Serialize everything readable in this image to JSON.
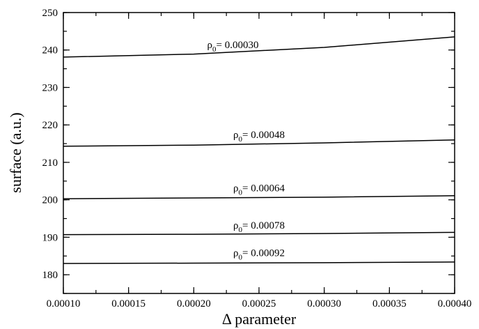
{
  "chart_data": {
    "type": "line",
    "xlabel": "Δ parameter",
    "ylabel": "surface (a.u.)",
    "xlim": [
      0.0001,
      0.0004
    ],
    "ylim": [
      175,
      250
    ],
    "grid": false,
    "x_ticks": [
      "0.00010",
      "0.00015",
      "0.00020",
      "0.00025",
      "0.00030",
      "0.00035",
      "0.00040"
    ],
    "x_tick_values": [
      0.0001,
      0.00015,
      0.0002,
      0.00025,
      0.0003,
      0.00035,
      0.0004
    ],
    "x_minor_step": 2.5e-05,
    "y_ticks": [
      "180",
      "190",
      "200",
      "210",
      "220",
      "230",
      "240",
      "250"
    ],
    "y_tick_values": [
      180,
      190,
      200,
      210,
      220,
      230,
      240,
      250
    ],
    "y_minor_step": 5,
    "series": [
      {
        "label": {
          "prefix": "ρ",
          "sub": "0",
          "suffix": "= 0.00030"
        },
        "label_anchor": [
          0.00023,
          240.5
        ],
        "x": [
          0.0001,
          0.0002,
          0.0003,
          0.0004
        ],
        "y": [
          238.1,
          238.9,
          240.7,
          243.5
        ]
      },
      {
        "label": {
          "prefix": "ρ",
          "sub": "0",
          "suffix": "= 0.00048"
        },
        "label_anchor": [
          0.00025,
          216.5
        ],
        "x": [
          0.0001,
          0.0002,
          0.0003,
          0.0004
        ],
        "y": [
          214.3,
          214.6,
          215.2,
          216.0
        ]
      },
      {
        "label": {
          "prefix": "ρ",
          "sub": "0",
          "suffix": "= 0.00064"
        },
        "label_anchor": [
          0.00025,
          202.3
        ],
        "x": [
          0.0001,
          0.0002,
          0.0003,
          0.0004
        ],
        "y": [
          200.3,
          200.5,
          200.7,
          201.1
        ]
      },
      {
        "label": {
          "prefix": "ρ",
          "sub": "0",
          "suffix": "= 0.00078"
        },
        "label_anchor": [
          0.00025,
          192.3
        ],
        "x": [
          0.0001,
          0.0002,
          0.0003,
          0.0004
        ],
        "y": [
          190.7,
          190.8,
          191.0,
          191.3
        ]
      },
      {
        "label": {
          "prefix": "ρ",
          "sub": "0",
          "suffix": "= 0.00092"
        },
        "label_anchor": [
          0.00025,
          185.0
        ],
        "x": [
          0.0001,
          0.0002,
          0.0003,
          0.0004
        ],
        "y": [
          183.0,
          183.1,
          183.2,
          183.4
        ]
      }
    ]
  }
}
